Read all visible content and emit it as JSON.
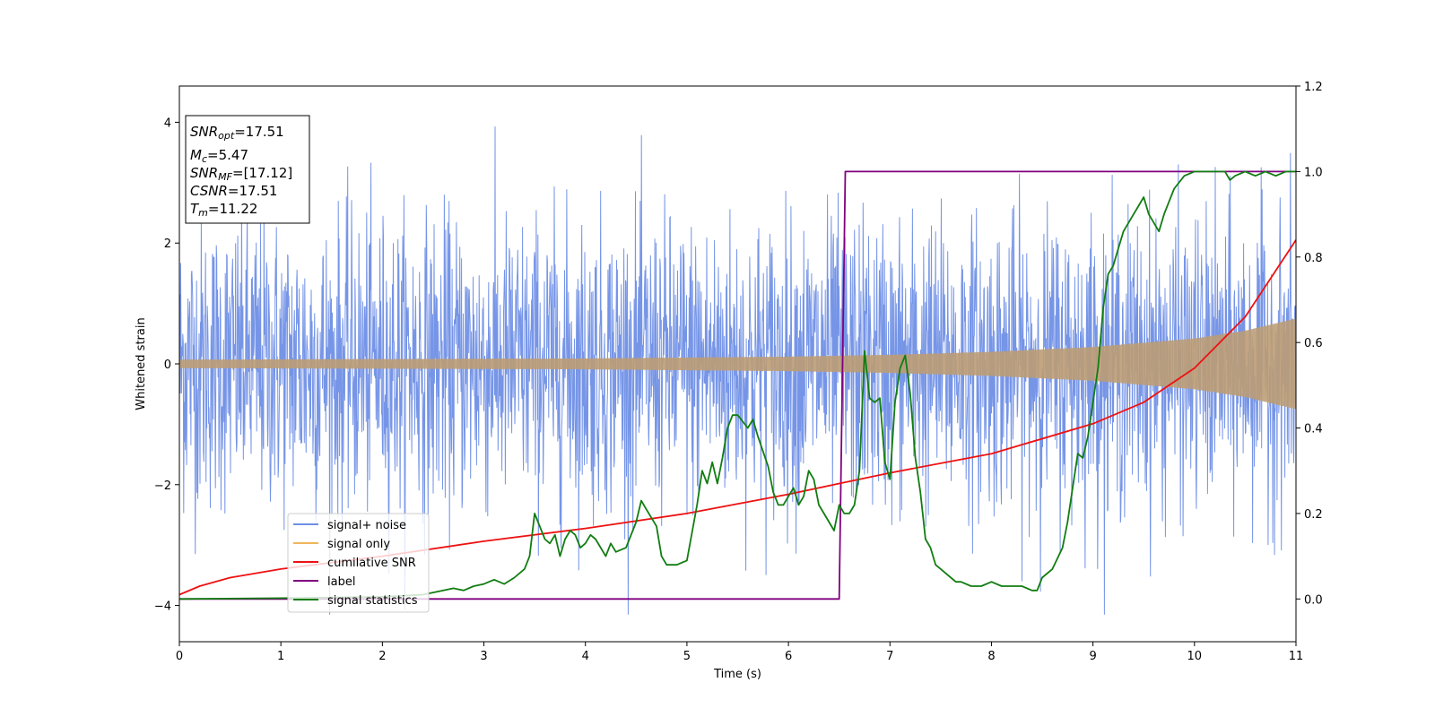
{
  "chart_data": {
    "type": "line",
    "xlabel": "Time (s)",
    "ylabel_left": "Whitened strain",
    "ylabel_right": "",
    "xlim": [
      0,
      11
    ],
    "ylim_left": [
      -4.6,
      4.6
    ],
    "ylim_right": [
      -0.1,
      1.2
    ],
    "xticks": [
      0,
      1,
      2,
      3,
      4,
      5,
      6,
      7,
      8,
      9,
      10,
      11
    ],
    "yticks_left": [
      -4,
      -2,
      0,
      2,
      4
    ],
    "yticks_right": [
      "0.0",
      "0.2",
      "0.4",
      "0.6",
      "0.8",
      "1.0",
      "1.2"
    ],
    "grid": false,
    "legend_position": "lower-left",
    "legend": [
      "signal+ noise",
      "signal only",
      "cumilative SNR",
      "label",
      "signal statistics"
    ],
    "colors": {
      "signal_noise": "#6f8fe6",
      "signal_only": "#f0b55a",
      "overlap": "#bc9c74",
      "cumulative_snr": "#ee1111",
      "label": "#800080",
      "signal_statistics": "#117d11"
    },
    "info_box": {
      "snr_opt": "17.51",
      "mc": "5.47",
      "snr_mf": "[17.12]",
      "csnr": "17.51",
      "tm": "11.22"
    },
    "series": [
      {
        "name": "signal+ noise",
        "axis": "left",
        "description": "whitened noisy strain, std about 1.2, range about -4.1 to 4.2",
        "std": 1.2
      },
      {
        "name": "signal only",
        "axis": "left",
        "envelope": {
          "x": [
            0,
            2,
            4,
            6,
            7,
            8,
            9,
            10,
            10.5,
            11
          ],
          "amp": [
            0.07,
            0.08,
            0.09,
            0.12,
            0.15,
            0.2,
            0.28,
            0.42,
            0.55,
            0.75
          ]
        }
      },
      {
        "name": "cumilative SNR",
        "axis": "right",
        "x": [
          0,
          0.2,
          0.5,
          1,
          2,
          3,
          4,
          5,
          6,
          6.5,
          7,
          8,
          9,
          9.5,
          10,
          10.5,
          11
        ],
        "y": [
          0.01,
          0.03,
          0.05,
          0.07,
          0.1,
          0.135,
          0.165,
          0.2,
          0.245,
          0.27,
          0.295,
          0.34,
          0.41,
          0.46,
          0.54,
          0.66,
          0.84
        ]
      },
      {
        "name": "label",
        "axis": "right",
        "x": [
          0,
          6.5,
          6.56,
          11
        ],
        "y": [
          0,
          0,
          1,
          1
        ]
      },
      {
        "name": "signal statistics",
        "axis": "right",
        "x": [
          0,
          1,
          2,
          2.4,
          2.6,
          2.7,
          2.8,
          2.9,
          3.0,
          3.1,
          3.2,
          3.3,
          3.4,
          3.45,
          3.5,
          3.6,
          3.65,
          3.7,
          3.75,
          3.8,
          3.85,
          3.9,
          3.95,
          4.0,
          4.05,
          4.1,
          4.2,
          4.25,
          4.3,
          4.4,
          4.5,
          4.55,
          4.6,
          4.7,
          4.75,
          4.8,
          4.9,
          5.0,
          5.1,
          5.15,
          5.2,
          5.25,
          5.3,
          5.35,
          5.4,
          5.45,
          5.5,
          5.6,
          5.65,
          5.7,
          5.8,
          5.85,
          5.9,
          5.95,
          6.0,
          6.05,
          6.1,
          6.15,
          6.2,
          6.25,
          6.3,
          6.35,
          6.4,
          6.45,
          6.5,
          6.55,
          6.6,
          6.65,
          6.7,
          6.75,
          6.8,
          6.85,
          6.9,
          6.95,
          7.0,
          7.05,
          7.1,
          7.15,
          7.2,
          7.25,
          7.3,
          7.35,
          7.4,
          7.45,
          7.5,
          7.55,
          7.6,
          7.65,
          7.7,
          7.8,
          7.9,
          8.0,
          8.1,
          8.2,
          8.3,
          8.4,
          8.45,
          8.5,
          8.6,
          8.7,
          8.75,
          8.8,
          8.85,
          8.9,
          8.95,
          9.0,
          9.05,
          9.1,
          9.15,
          9.2,
          9.25,
          9.3,
          9.35,
          9.4,
          9.45,
          9.5,
          9.55,
          9.6,
          9.65,
          9.7,
          9.75,
          9.8,
          9.9,
          10.0,
          10.1,
          10.2,
          10.3,
          10.35,
          10.4,
          10.5,
          10.6,
          10.7,
          10.8,
          10.9,
          11.0
        ],
        "y": [
          0.0,
          0.002,
          0.005,
          0.01,
          0.02,
          0.025,
          0.02,
          0.03,
          0.035,
          0.045,
          0.035,
          0.05,
          0.07,
          0.1,
          0.2,
          0.14,
          0.13,
          0.15,
          0.1,
          0.14,
          0.16,
          0.15,
          0.12,
          0.13,
          0.15,
          0.14,
          0.1,
          0.13,
          0.11,
          0.12,
          0.18,
          0.23,
          0.21,
          0.17,
          0.1,
          0.08,
          0.08,
          0.09,
          0.22,
          0.3,
          0.27,
          0.32,
          0.27,
          0.33,
          0.4,
          0.43,
          0.43,
          0.4,
          0.42,
          0.38,
          0.31,
          0.25,
          0.22,
          0.22,
          0.24,
          0.26,
          0.22,
          0.24,
          0.3,
          0.28,
          0.22,
          0.2,
          0.18,
          0.16,
          0.22,
          0.2,
          0.2,
          0.22,
          0.3,
          0.58,
          0.47,
          0.46,
          0.47,
          0.32,
          0.28,
          0.46,
          0.54,
          0.57,
          0.48,
          0.33,
          0.25,
          0.14,
          0.12,
          0.08,
          0.07,
          0.06,
          0.05,
          0.04,
          0.04,
          0.03,
          0.03,
          0.04,
          0.03,
          0.03,
          0.03,
          0.02,
          0.02,
          0.05,
          0.07,
          0.12,
          0.18,
          0.26,
          0.34,
          0.33,
          0.38,
          0.46,
          0.54,
          0.68,
          0.76,
          0.78,
          0.82,
          0.86,
          0.88,
          0.9,
          0.92,
          0.94,
          0.9,
          0.88,
          0.86,
          0.9,
          0.93,
          0.96,
          0.99,
          1.0,
          1.0,
          1.0,
          1.0,
          0.98,
          0.99,
          1.0,
          0.99,
          1.0,
          0.99,
          1.0,
          1.0
        ]
      }
    ]
  }
}
